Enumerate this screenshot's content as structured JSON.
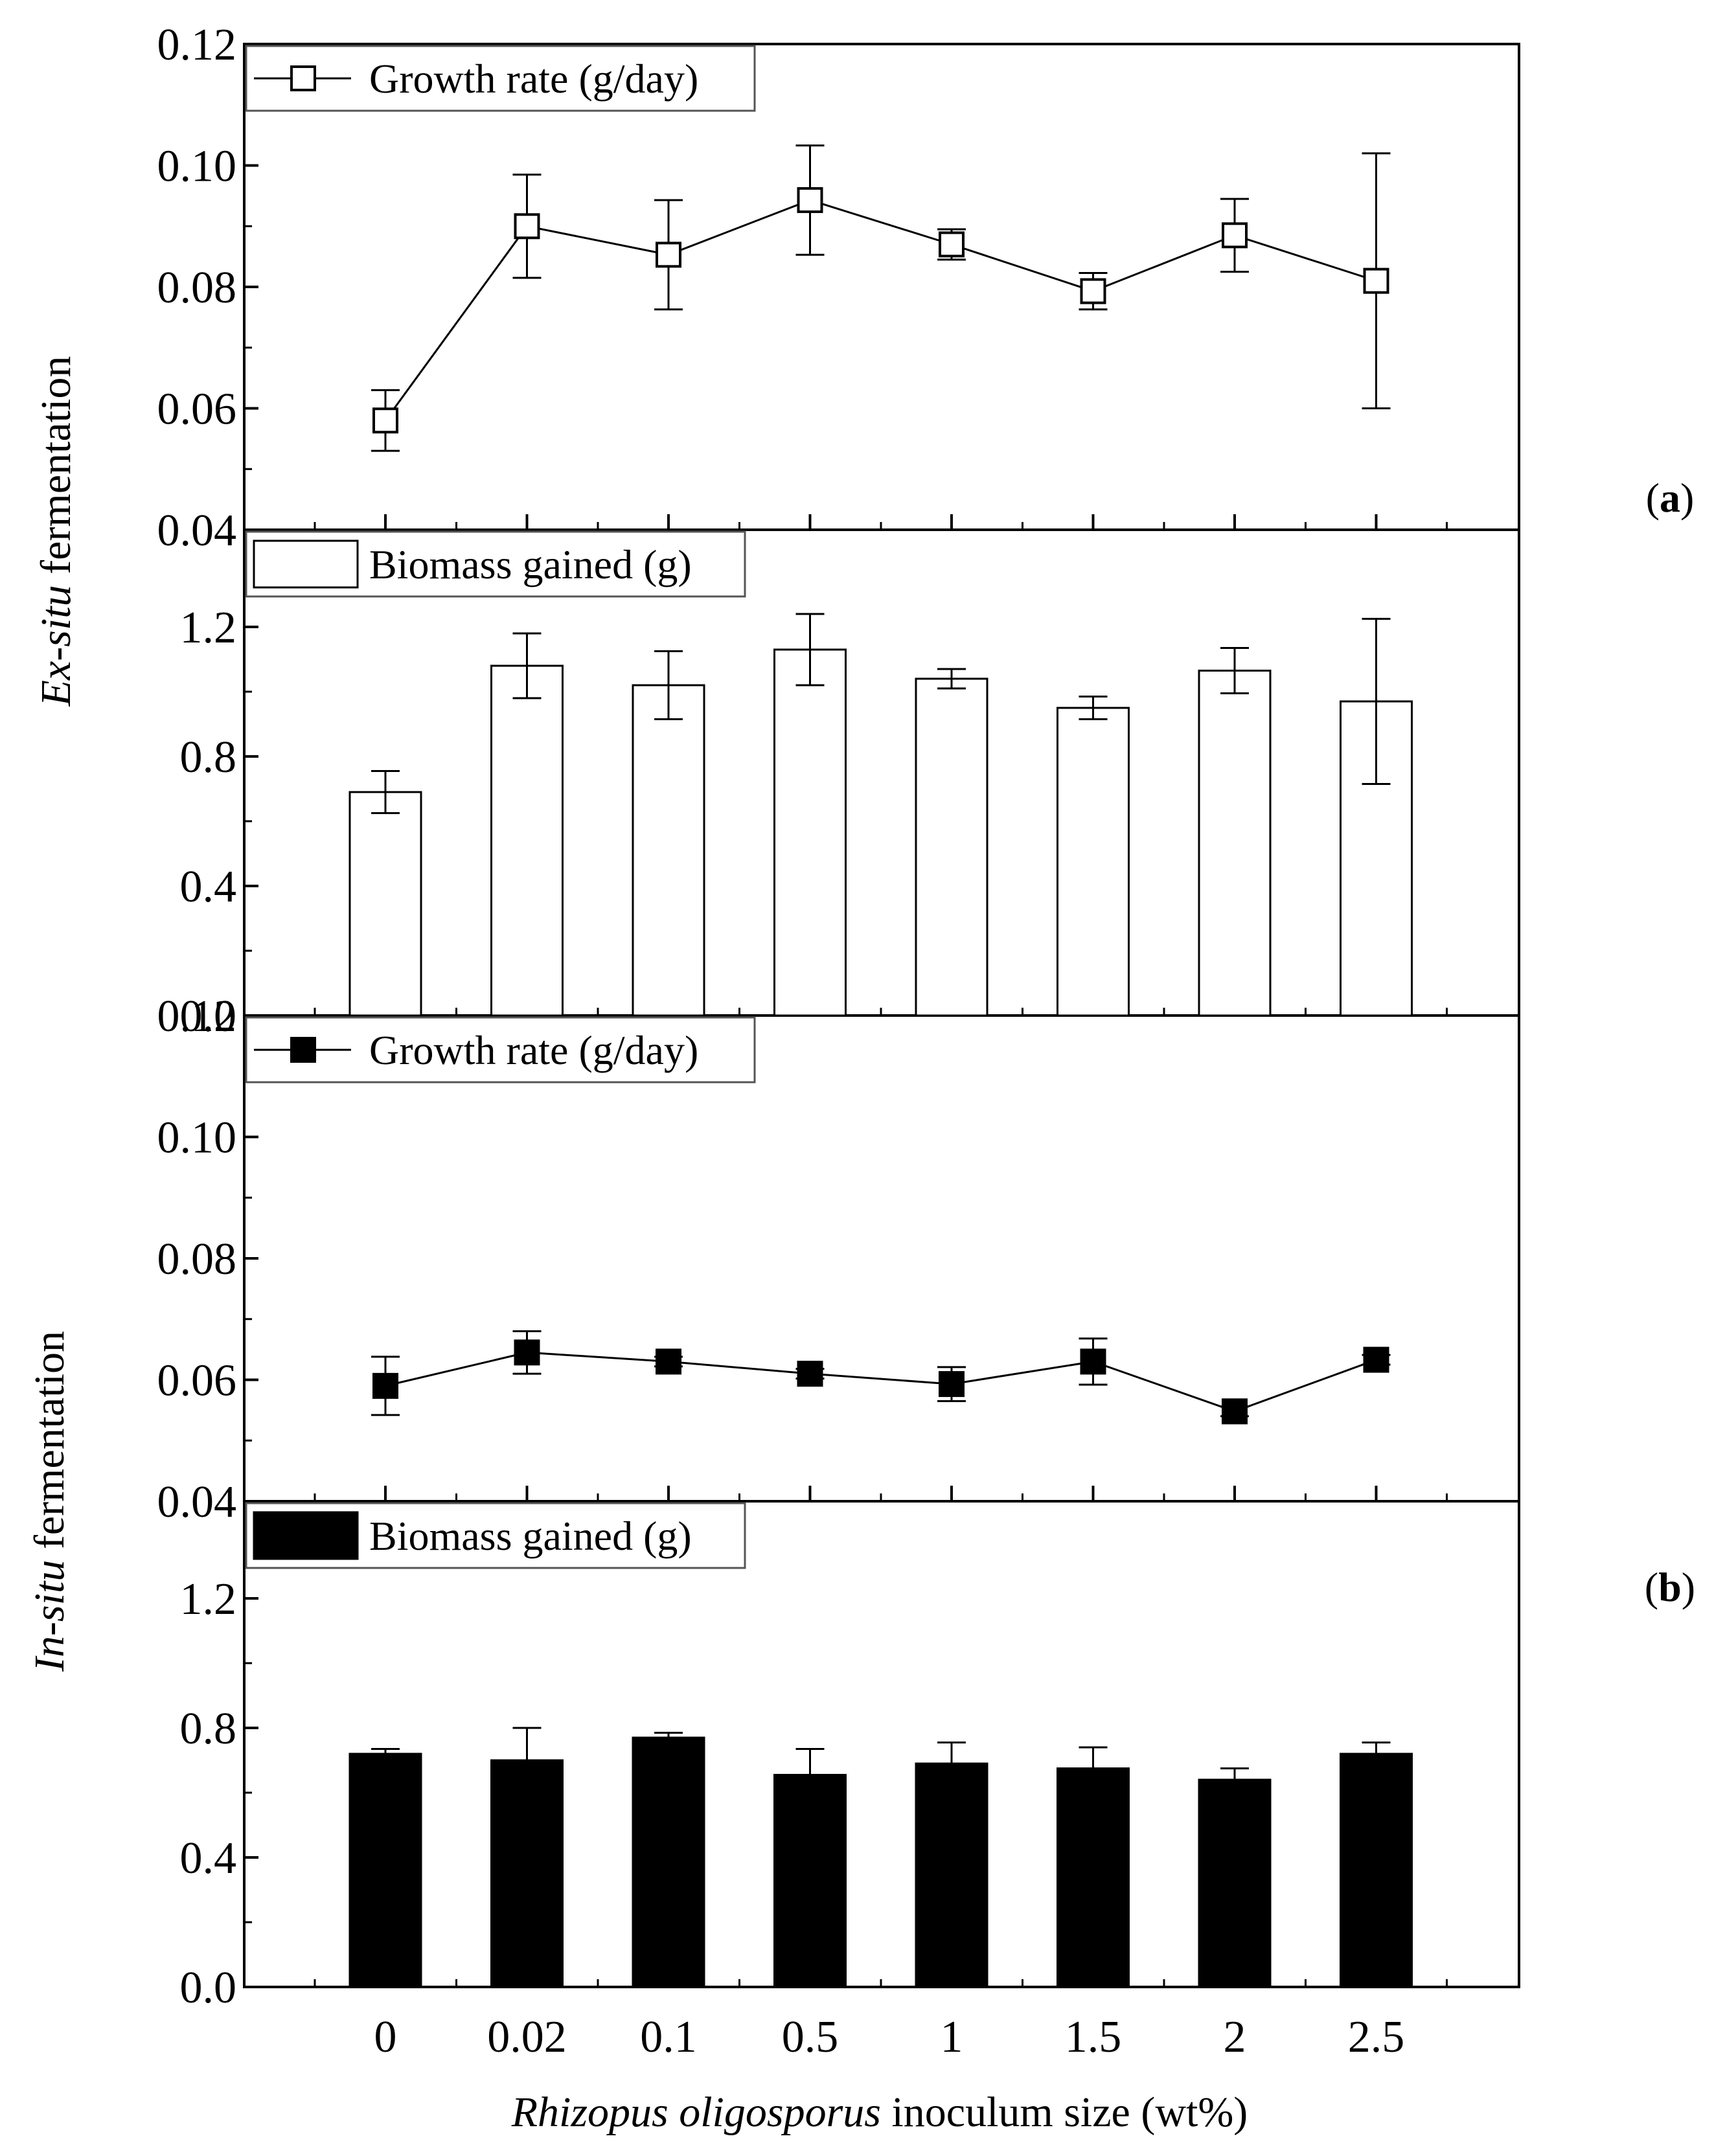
{
  "chart_data": [
    {
      "id": "a_growth",
      "type": "line",
      "panel": "a",
      "condition_label": [
        "Ex-situ",
        " fermentation"
      ],
      "categories": [
        "0",
        "0.02",
        "0.1",
        "0.5",
        "1",
        "1.5",
        "2",
        "2.5"
      ],
      "series": [
        {
          "name": "Growth rate (g/day)",
          "marker": "open-square",
          "values": [
            0.058,
            0.09,
            0.0853,
            0.0943,
            0.087,
            0.0793,
            0.0885,
            0.081
          ],
          "errors": [
            0.005,
            0.0085,
            0.009,
            0.009,
            0.0025,
            0.003,
            0.006,
            0.021
          ]
        }
      ],
      "ylim": [
        0.04,
        0.12
      ],
      "yticks": [
        "0.04",
        "0.06",
        "0.08",
        "0.10",
        "0.12"
      ],
      "legend": "top-left"
    },
    {
      "id": "a_biomass",
      "type": "bar",
      "panel": "a",
      "categories": [
        "0",
        "0.02",
        "0.1",
        "0.5",
        "1",
        "1.5",
        "2",
        "2.5"
      ],
      "series": [
        {
          "name": "Biomass gained (g)",
          "fill": "#ffffff",
          "values": [
            0.69,
            1.08,
            1.02,
            1.13,
            1.04,
            0.95,
            1.065,
            0.97
          ],
          "errors": [
            0.065,
            0.1,
            0.105,
            0.11,
            0.03,
            0.035,
            0.07,
            0.255
          ]
        }
      ],
      "ylim": [
        0.0,
        1.5
      ],
      "yticks": [
        "0.0",
        "0.4",
        "0.8",
        "1.2"
      ],
      "legend": "top-left"
    },
    {
      "id": "b_growth",
      "type": "line",
      "panel": "b",
      "condition_label": [
        "In-situ",
        " fermentation"
      ],
      "categories": [
        "0",
        "0.02",
        "0.1",
        "0.5",
        "1",
        "1.5",
        "2",
        "2.5"
      ],
      "series": [
        {
          "name": "Growth rate (g/day)",
          "marker": "filled-square",
          "values": [
            0.059,
            0.0645,
            0.063,
            0.061,
            0.0593,
            0.063,
            0.0548,
            0.0633
          ],
          "errors": [
            0.0048,
            0.0035,
            0.0008,
            0.0008,
            0.0028,
            0.0038,
            0.0008,
            0.0008
          ]
        }
      ],
      "ylim": [
        0.04,
        0.12
      ],
      "yticks": [
        "0.04",
        "0.06",
        "0.08",
        "0.10",
        "0.12"
      ],
      "legend": "top-left"
    },
    {
      "id": "b_biomass",
      "type": "bar",
      "panel": "b",
      "categories": [
        "0",
        "0.02",
        "0.1",
        "0.5",
        "1",
        "1.5",
        "2",
        "2.5"
      ],
      "series": [
        {
          "name": "Biomass gained (g)",
          "fill": "#000000",
          "values": [
            0.72,
            0.7,
            0.77,
            0.655,
            0.69,
            0.675,
            0.64,
            0.72
          ],
          "errors": [
            0.015,
            0.1,
            0.015,
            0.08,
            0.065,
            0.065,
            0.035,
            0.035
          ]
        }
      ],
      "ylim": [
        0.0,
        1.5
      ],
      "yticks": [
        "0.0",
        "0.4",
        "0.8",
        "1.2"
      ],
      "legend": "top-left"
    }
  ],
  "xlabel": {
    "italic": "Rhizopus oligosporus",
    "rest": " inoculum size  (wt%)"
  },
  "panel_labels": [
    {
      "open": "(",
      "letter": "a",
      "close": ")"
    },
    {
      "open": "(",
      "letter": "b",
      "close": ")"
    }
  ],
  "colors": {
    "axis": "#000000",
    "line": "#000000",
    "open_marker_fill": "#ffffff",
    "filled_marker_fill": "#000000"
  }
}
